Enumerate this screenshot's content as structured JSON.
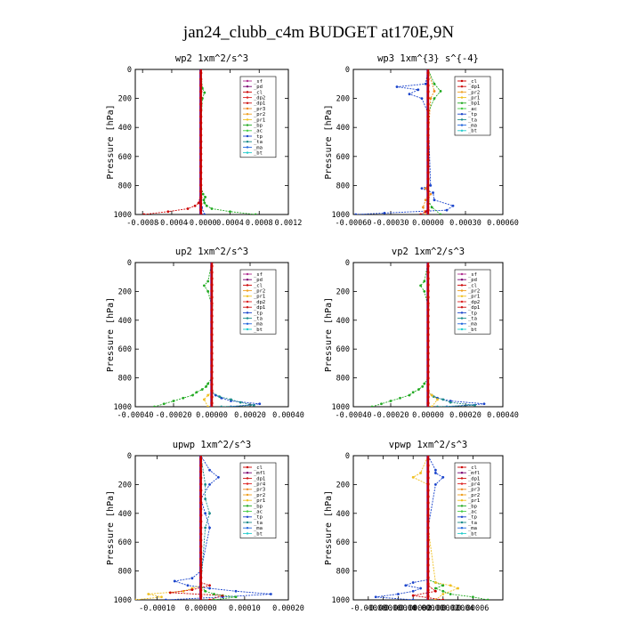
{
  "figure_title": "jan24_clubb_c4m  BUDGET at170E,9N",
  "chart_data": [
    {
      "type": "line",
      "title": "wp2  1xm^2/s^3",
      "ylabel": "Pressure [hPa]",
      "xlim": [
        -0.0009,
        0.0012
      ],
      "ylim": [
        1000,
        0
      ],
      "xticks": [
        "-0.0008",
        "-0.0004",
        "-0.0000",
        "0.0004",
        "0.0008",
        "0.0012"
      ],
      "xtick_values": [
        -0.0008,
        -0.0004,
        0,
        0.0004,
        0.0008,
        0.0012
      ],
      "yticks": [
        "0",
        "200",
        "400",
        "600",
        "800",
        "1000"
      ],
      "legend_position": "top-right",
      "legend": [
        "_sf",
        "_pd",
        "_cl",
        "_dp2",
        "_dp1",
        "_pr3",
        "_pr2",
        "_pr1",
        "_bp",
        "_ac",
        "_tp",
        "_ta",
        "_ma",
        "_bt"
      ],
      "series": [
        {
          "name": "_pd",
          "color": "#cc0000",
          "y": [
            1000,
            980,
            960,
            940,
            920,
            900,
            870,
            800,
            500,
            200,
            150,
            100,
            0
          ],
          "x": [
            -0.00078,
            -0.00045,
            -0.00018,
            -8e-05,
            -3e-05,
            -1e-05,
            0,
            0,
            0,
            0,
            0,
            0,
            0
          ]
        },
        {
          "name": "_dp1",
          "color": "#22aa22",
          "y": [
            1000,
            980,
            960,
            940,
            920,
            900,
            880,
            860,
            800,
            400,
            200,
            160,
            130,
            0
          ],
          "x": [
            0.00075,
            0.0004,
            0.00015,
            8e-05,
            5e-05,
            4e-05,
            6e-05,
            3e-05,
            0,
            0,
            2e-05,
            5e-05,
            2e-05,
            0
          ]
        },
        {
          "name": "_bp",
          "color": "#7a0070",
          "y": [
            1000,
            900,
            500,
            100,
            0
          ],
          "x": [
            1e-05,
            0,
            0,
            0,
            0
          ]
        },
        {
          "name": "_tp",
          "color": "#1a44cc",
          "y": [
            1000,
            950,
            900,
            500,
            0
          ],
          "x": [
            5e-05,
            1e-05,
            0,
            0,
            0
          ]
        }
      ]
    },
    {
      "type": "line",
      "title": "wp3  1xm^{3} s^{-4}",
      "ylabel": "Pressure [hPa]",
      "xlim": [
        -0.0006,
        0.0006
      ],
      "ylim": [
        1000,
        0
      ],
      "xticks": [
        "-0.00060",
        "-0.00030",
        "0.00000",
        "0.00030",
        "0.00060"
      ],
      "xtick_values": [
        -0.0006,
        -0.0003,
        0,
        0.0003,
        0.0006
      ],
      "yticks": [
        "0",
        "200",
        "400",
        "600",
        "800",
        "1000"
      ],
      "legend_position": "top-right",
      "legend": [
        "_cl",
        "_dp1",
        "_pr2",
        "_pr1",
        "_bp1",
        "_ac",
        "_tp",
        "_ta",
        "_ma",
        "_bt"
      ],
      "series": [
        {
          "name": "_tp",
          "color": "#1a44cc",
          "y": [
            1000,
            990,
            970,
            940,
            900,
            850,
            820,
            800,
            300,
            200,
            170,
            140,
            120,
            100,
            0
          ],
          "x": [
            -0.00058,
            -0.00035,
            0.00015,
            0.0002,
            5e-05,
            4e-05,
            -5e-05,
            2e-05,
            0,
            -5e-05,
            -0.00015,
            -8e-05,
            -0.00025,
            -2e-05,
            0
          ]
        },
        {
          "name": "_cl",
          "color": "#cc0000",
          "y": [
            1000,
            980,
            950,
            900,
            500,
            0
          ],
          "x": [
            -6e-05,
            -2e-05,
            0,
            0,
            0,
            0
          ]
        },
        {
          "name": "_pr1",
          "color": "#f09020",
          "y": [
            1000,
            950,
            900,
            860,
            820,
            800,
            500,
            200,
            150,
            0
          ],
          "x": [
            -2e-05,
            -4e-05,
            -2e-05,
            2e-05,
            -2e-05,
            0,
            0,
            2e-05,
            5e-05,
            0
          ]
        },
        {
          "name": "_dp1",
          "color": "#22aa22",
          "y": [
            1000,
            950,
            900,
            300,
            200,
            150,
            100,
            0
          ],
          "x": [
            0.0001,
            3e-05,
            0,
            0,
            5e-05,
            0.0001,
            5e-05,
            0
          ]
        }
      ]
    },
    {
      "type": "line",
      "title": "up2  1xm^2/s^3",
      "ylabel": "Pressure [hPa]",
      "xlim": [
        -0.0004,
        0.0004
      ],
      "ylim": [
        1000,
        0
      ],
      "xticks": [
        "-0.00040",
        "-0.00020",
        "0.00000",
        "0.00020",
        "0.00040"
      ],
      "xtick_values": [
        -0.0004,
        -0.0002,
        0,
        0.0002,
        0.0004
      ],
      "yticks": [
        "0",
        "200",
        "400",
        "600",
        "800",
        "1000"
      ],
      "legend_position": "top-right",
      "legend": [
        "_sf",
        "_pd",
        "_cl",
        "_pr2",
        "_pr1",
        "_dp2",
        "_dp1",
        "_tp",
        "_ta",
        "_ma",
        "_bt"
      ],
      "series": [
        {
          "name": "_dp1",
          "color": "#22aa22",
          "y": [
            1000,
            980,
            960,
            940,
            920,
            900,
            880,
            860,
            840,
            800,
            300,
            200,
            160,
            130,
            0
          ],
          "x": [
            -0.0003,
            -0.00025,
            -0.0002,
            -0.00015,
            -0.0001,
            -8e-05,
            -5e-05,
            -3e-05,
            -2e-05,
            0,
            0,
            -2e-05,
            -4e-05,
            -2e-05,
            0
          ]
        },
        {
          "name": "_tp",
          "color": "#1a44cc",
          "y": [
            1000,
            980,
            960,
            940,
            920,
            900,
            500,
            0
          ],
          "x": [
            0.0001,
            0.00025,
            0.0001,
            5e-05,
            2e-05,
            0,
            0,
            0
          ]
        },
        {
          "name": "_ta",
          "color": "#1a8a8a",
          "y": [
            1000,
            990,
            970,
            950,
            930,
            900,
            0
          ],
          "x": [
            5e-05,
            0.00022,
            0.00015,
            0.0001,
            4e-05,
            0,
            0
          ]
        },
        {
          "name": "_pr1",
          "color": "#f0c020",
          "y": [
            1000,
            950,
            920,
            900,
            0
          ],
          "x": [
            -2e-05,
            -4e-05,
            -2e-05,
            0,
            0
          ]
        },
        {
          "name": "_pd",
          "color": "#cc0000",
          "y": [
            1000,
            900,
            0
          ],
          "x": [
            0,
            0,
            0
          ]
        }
      ]
    },
    {
      "type": "line",
      "title": "vp2  1xm^2/s^3",
      "ylabel": "Pressure [hPa]",
      "xlim": [
        -0.0004,
        0.0004
      ],
      "ylim": [
        1000,
        0
      ],
      "xticks": [
        "-0.00040",
        "-0.00020",
        "0.00000",
        "0.00020",
        "0.00040"
      ],
      "xtick_values": [
        -0.0004,
        -0.0002,
        0,
        0.0002,
        0.0004
      ],
      "yticks": [
        "0",
        "200",
        "400",
        "600",
        "800",
        "1000"
      ],
      "legend_position": "top-right",
      "legend": [
        "_sf",
        "_pd",
        "_cl",
        "_pr2",
        "_pr1",
        "_dp2",
        "_dp1",
        "_tp",
        "_ta",
        "_ma",
        "_bt"
      ],
      "series": [
        {
          "name": "_dp1",
          "color": "#22aa22",
          "y": [
            1000,
            980,
            960,
            940,
            920,
            900,
            880,
            860,
            840,
            800,
            300,
            200,
            160,
            130,
            0
          ],
          "x": [
            -0.0003,
            -0.00025,
            -0.0002,
            -0.00015,
            -0.0001,
            -8e-05,
            -5e-05,
            -3e-05,
            -2e-05,
            0,
            0,
            -2e-05,
            -4e-05,
            -2e-05,
            0
          ]
        },
        {
          "name": "_tp",
          "color": "#1a44cc",
          "y": [
            1000,
            980,
            960,
            940,
            920,
            900,
            500,
            0
          ],
          "x": [
            0.0001,
            0.0003,
            0.00012,
            5e-05,
            2e-05,
            0,
            0,
            0
          ]
        },
        {
          "name": "_ta",
          "color": "#1a8a8a",
          "y": [
            1000,
            990,
            970,
            950,
            930,
            900,
            0
          ],
          "x": [
            5e-05,
            0.00025,
            0.00012,
            8e-05,
            3e-05,
            0,
            0
          ]
        },
        {
          "name": "_pr1",
          "color": "#f0c020",
          "y": [
            1000,
            950,
            920,
            900,
            0
          ],
          "x": [
            2e-05,
            5e-05,
            2e-05,
            0,
            0
          ]
        },
        {
          "name": "_pd",
          "color": "#cc0000",
          "y": [
            1000,
            900,
            0
          ],
          "x": [
            0,
            0,
            0
          ]
        }
      ]
    },
    {
      "type": "line",
      "title": "upwp  1xm^2/s^3",
      "ylabel": "Pressure [hPa]",
      "xlim": [
        -0.00015,
        0.0002
      ],
      "ylim": [
        1000,
        0
      ],
      "xticks": [
        "-0.00010",
        "0.00000",
        "0.00010",
        "0.00020"
      ],
      "xtick_values": [
        -0.0001,
        0,
        0.0001,
        0.0002
      ],
      "yticks": [
        "0",
        "200",
        "400",
        "600",
        "800",
        "1000"
      ],
      "legend_position": "top-right",
      "legend": [
        "_cl",
        "_mfl",
        "_dp1",
        "_pr4",
        "_pr3",
        "_pr2",
        "_pr1",
        "_bp",
        "_ac",
        "_tp",
        "_ta",
        "_ma",
        "_bt"
      ],
      "series": [
        {
          "name": "_tp",
          "color": "#1a44cc",
          "y": [
            1000,
            980,
            960,
            940,
            920,
            900,
            870,
            850,
            800,
            500,
            400,
            300,
            200,
            150,
            100,
            0
          ],
          "x": [
            -8e-05,
            5e-05,
            0.00016,
            8e-05,
            2e-05,
            -3e-05,
            -6e-05,
            -2e-05,
            0,
            2e-05,
            1e-05,
            0,
            2e-05,
            4e-05,
            2e-05,
            0
          ]
        },
        {
          "name": "_pr1",
          "color": "#f0c020",
          "y": [
            1000,
            980,
            960,
            940,
            920,
            900,
            0
          ],
          "x": [
            -0.00015,
            -9e-05,
            -0.00012,
            -4e-05,
            -2e-05,
            0,
            0
          ]
        },
        {
          "name": "_cl",
          "color": "#cc0000",
          "y": [
            1000,
            970,
            950,
            930,
            900,
            880,
            0
          ],
          "x": [
            2e-05,
            5e-05,
            -7e-05,
            -2e-05,
            2e-05,
            0,
            0
          ]
        },
        {
          "name": "_dp1",
          "color": "#22aa22",
          "y": [
            1000,
            980,
            960,
            940,
            900,
            0
          ],
          "x": [
            3e-05,
            8e-05,
            3e-05,
            1e-05,
            0,
            0
          ]
        },
        {
          "name": "_ac",
          "color": "#1a8a8a",
          "y": [
            1000,
            900,
            500,
            400,
            300,
            200,
            0
          ],
          "x": [
            0,
            0,
            1e-05,
            2e-05,
            1e-05,
            1e-05,
            0
          ]
        }
      ]
    },
    {
      "type": "line",
      "title": "vpwp  1xm^2/s^3",
      "ylabel": "Pressure [hPa]",
      "xlim": [
        -0.0001,
        0.0001
      ],
      "ylim": [
        1000,
        0
      ],
      "xticks": [
        "-0.00008",
        "-0.00006",
        "-0.00004",
        "-0.00002",
        "0.00000",
        "0.00002",
        "0.00004",
        "0.00006"
      ],
      "xtick_values": [
        -8e-05,
        -6e-05,
        -4e-05,
        -2e-05,
        0,
        2e-05,
        4e-05,
        6e-05
      ],
      "yticks": [
        "0",
        "200",
        "400",
        "600",
        "800",
        "1000"
      ],
      "legend_position": "top-right",
      "legend": [
        "_cl",
        "_mfl",
        "_dp1",
        "_pr4",
        "_pr3",
        "_pr2",
        "_pr1",
        "_bp",
        "_ac",
        "_tp",
        "_ta",
        "_ma",
        "_bt"
      ],
      "series": [
        {
          "name": "_tp",
          "color": "#1a44cc",
          "y": [
            1000,
            980,
            960,
            940,
            920,
            900,
            880,
            860,
            800,
            500,
            200,
            150,
            120,
            100,
            0
          ],
          "x": [
            -2e-05,
            -7e-05,
            -4e-05,
            -2e-05,
            -1e-05,
            -3e-05,
            -2e-05,
            0,
            0,
            0,
            1e-05,
            2e-05,
            1e-05,
            1e-05,
            0
          ]
        },
        {
          "name": "_dp1",
          "color": "#22aa22",
          "y": [
            1000,
            980,
            960,
            940,
            920,
            900,
            880,
            860,
            500,
            0
          ],
          "x": [
            8e-05,
            6e-05,
            3e-05,
            2e-05,
            1e-05,
            2e-05,
            1e-05,
            0,
            0,
            0
          ]
        },
        {
          "name": "_pr1",
          "color": "#f0c020",
          "y": [
            1000,
            960,
            920,
            900,
            880,
            500,
            200,
            150,
            120,
            0
          ],
          "x": [
            1e-05,
            2e-05,
            4e-05,
            3e-05,
            1e-05,
            0,
            0,
            -2e-05,
            -1e-05,
            0
          ]
        },
        {
          "name": "_cl",
          "color": "#cc0000",
          "y": [
            1000,
            970,
            940,
            900,
            0
          ],
          "x": [
            2e-05,
            -2e-05,
            1e-05,
            0,
            0
          ]
        }
      ]
    }
  ]
}
